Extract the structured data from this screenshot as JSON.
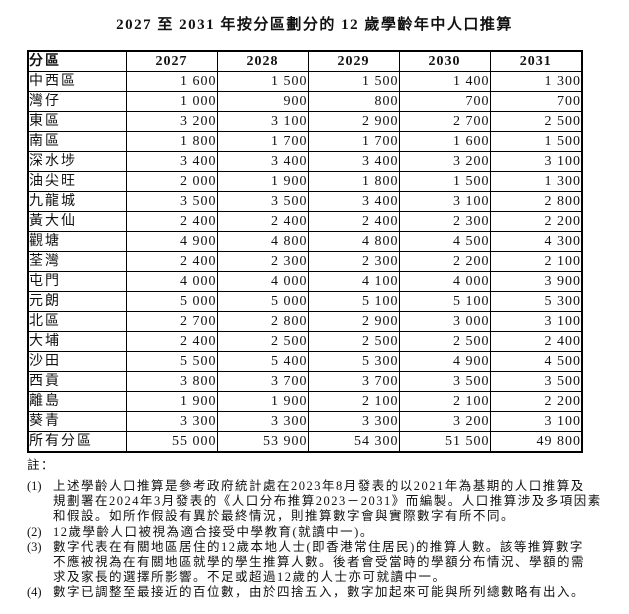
{
  "title": "2027 至 2031 年按分區劃分的 12 歲學齡年中人口推算",
  "table": {
    "columns": [
      "分區",
      "2027",
      "2028",
      "2029",
      "2030",
      "2031"
    ],
    "rows": [
      {
        "district": "中西區",
        "values": [
          "1 600",
          "1 500",
          "1 500",
          "1 400",
          "1 300"
        ]
      },
      {
        "district": "灣仔",
        "values": [
          "1 000",
          "900",
          "800",
          "700",
          "700"
        ]
      },
      {
        "district": "東區",
        "values": [
          "3 200",
          "3 100",
          "2 900",
          "2 700",
          "2 500"
        ]
      },
      {
        "district": "南區",
        "values": [
          "1 800",
          "1 700",
          "1 700",
          "1 600",
          "1 500"
        ]
      },
      {
        "district": "深水埗",
        "values": [
          "3 400",
          "3 400",
          "3 400",
          "3 200",
          "3 100"
        ]
      },
      {
        "district": "油尖旺",
        "values": [
          "2 000",
          "1 900",
          "1 800",
          "1 500",
          "1 300"
        ]
      },
      {
        "district": "九龍城",
        "values": [
          "3 500",
          "3 500",
          "3 400",
          "3 100",
          "2 800"
        ]
      },
      {
        "district": "黃大仙",
        "values": [
          "2 400",
          "2 400",
          "2 400",
          "2 300",
          "2 200"
        ]
      },
      {
        "district": "觀塘",
        "values": [
          "4 900",
          "4 800",
          "4 800",
          "4 500",
          "4 300"
        ]
      },
      {
        "district": "荃灣",
        "values": [
          "2 400",
          "2 300",
          "2 300",
          "2 200",
          "2 100"
        ]
      },
      {
        "district": "屯門",
        "values": [
          "4 000",
          "4 000",
          "4 100",
          "4 000",
          "3 900"
        ]
      },
      {
        "district": "元朗",
        "values": [
          "5 000",
          "5 000",
          "5 100",
          "5 100",
          "5 300"
        ]
      },
      {
        "district": "北區",
        "values": [
          "2 700",
          "2 800",
          "2 900",
          "3 000",
          "3 100"
        ]
      },
      {
        "district": "大埔",
        "values": [
          "2 400",
          "2 500",
          "2 500",
          "2 500",
          "2 400"
        ]
      },
      {
        "district": "沙田",
        "values": [
          "5 500",
          "5 400",
          "5 300",
          "4 900",
          "4 500"
        ]
      },
      {
        "district": "西貢",
        "values": [
          "3 800",
          "3 700",
          "3 700",
          "3 500",
          "3 500"
        ]
      },
      {
        "district": "離島",
        "values": [
          "1 900",
          "1 900",
          "2 100",
          "2 100",
          "2 200"
        ]
      },
      {
        "district": "葵青",
        "values": [
          "3 300",
          "3 300",
          "3 300",
          "3 200",
          "3 100"
        ]
      },
      {
        "district": "所有分區",
        "values": [
          "55 000",
          "53 900",
          "54 300",
          "51 500",
          "49 800"
        ]
      }
    ]
  },
  "notes": {
    "heading": "註：",
    "items": [
      {
        "label": "(1)",
        "lines": [
          "上述學齡人口推算是參考政府統計處在2023年8月發表的以2021年為基期的人口推算及",
          "規劃署在2024年3月發表的《人口分布推算2023－2031》而編製。人口推算涉及多項因素",
          "和假設。如所作假設有異於最終情況，則推算數字會與實際數字有所不同。"
        ]
      },
      {
        "label": "(2)",
        "lines": [
          "12歲學齡人口被視為適合接受中學教育(就讀中一)。"
        ]
      },
      {
        "label": "(3)",
        "lines": [
          "數字代表在有關地區居住的12歲本地人士(即香港常住居民)的推算人數。該等推算數字",
          "不應被視為在有關地區就學的學生推算人數。後者會受當時的學額分布情況、學額的需",
          "求及家長的選擇所影響。不足或超過12歲的人士亦可就讀中一。"
        ]
      },
      {
        "label": "(4)",
        "lines": [
          "數字已調整至最接近的百位數，由於四捨五入，數字加起來可能與所列總數略有出入。"
        ]
      }
    ]
  }
}
